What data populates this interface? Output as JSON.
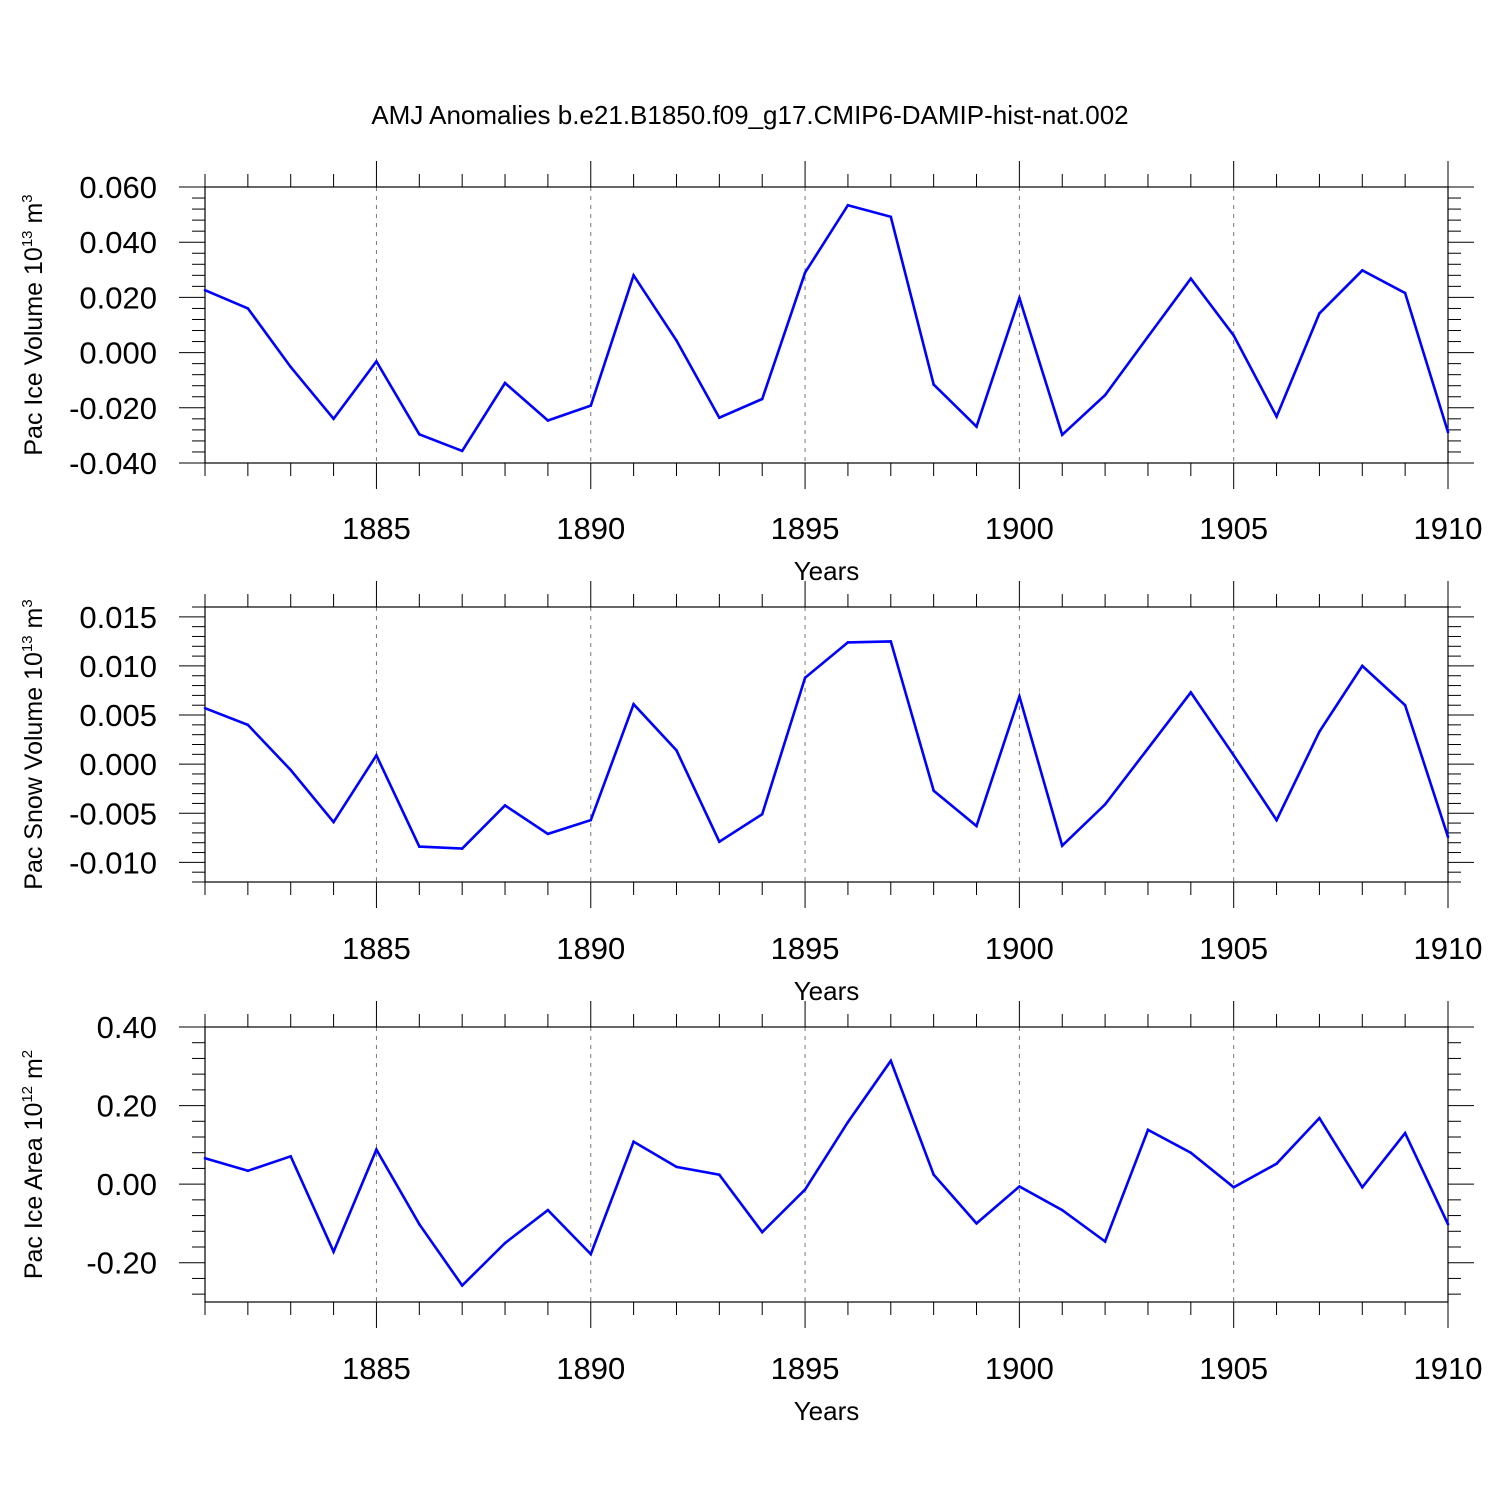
{
  "figure": {
    "title": "AMJ Anomalies b.e21.B1850.f09_g17.CMIP6-DAMIP-hist-nat.002",
    "line_color": "#0000ff"
  },
  "chart_data": [
    {
      "type": "line",
      "title": "AMJ Anomalies b.e21.B1850.f09_g17.CMIP6-DAMIP-hist-nat.002",
      "ylabel_prefix": "Pac Ice Volume 10",
      "ylabel_exp": "13",
      "ylabel_unit": " m",
      "ylabel_unit_exp": "3",
      "xlabel": "Years",
      "xlim": [
        1881,
        1910
      ],
      "ylim": [
        -0.04,
        0.06
      ],
      "yticks": [
        -0.04,
        -0.02,
        0.0,
        0.02,
        0.04,
        0.06
      ],
      "ytick_labels": [
        "-0.040",
        "-0.020",
        "0.000",
        "0.020",
        "0.040",
        "0.060"
      ],
      "xticks": [
        1885,
        1890,
        1895,
        1900,
        1905,
        1910
      ],
      "xtick_labels": [
        "1885",
        "1890",
        "1895",
        "1900",
        "1905",
        "1910"
      ],
      "grid": "vertical-dashed",
      "x": [
        1881,
        1882,
        1883,
        1884,
        1885,
        1886,
        1887,
        1888,
        1889,
        1890,
        1891,
        1892,
        1893,
        1894,
        1895,
        1896,
        1897,
        1898,
        1899,
        1900,
        1901,
        1902,
        1903,
        1904,
        1905,
        1906,
        1907,
        1908,
        1909,
        1910
      ],
      "values": [
        0.0226,
        0.016,
        -0.0052,
        -0.024,
        -0.0032,
        -0.0296,
        -0.0356,
        -0.011,
        -0.0246,
        -0.0192,
        0.028,
        0.0044,
        -0.0236,
        -0.0168,
        0.029,
        0.0534,
        0.0492,
        -0.0116,
        -0.0268,
        0.0198,
        -0.0298,
        -0.0154,
        0.0058,
        0.0268,
        0.0062,
        -0.0232,
        0.0142,
        0.0298,
        0.0216,
        -0.0288
      ]
    },
    {
      "type": "line",
      "ylabel_prefix": "Pac Snow Volume 10",
      "ylabel_exp": "13",
      "ylabel_unit": " m",
      "ylabel_unit_exp": "3",
      "xlabel": "Years",
      "xlim": [
        1881,
        1910
      ],
      "ylim": [
        -0.012,
        0.016
      ],
      "yticks": [
        -0.01,
        -0.005,
        0.0,
        0.005,
        0.01,
        0.015
      ],
      "ytick_labels": [
        "-0.010",
        "-0.005",
        "0.000",
        "0.005",
        "0.010",
        "0.015"
      ],
      "xticks": [
        1885,
        1890,
        1895,
        1900,
        1905,
        1910
      ],
      "xtick_labels": [
        "1885",
        "1890",
        "1895",
        "1900",
        "1905",
        "1910"
      ],
      "grid": "vertical-dashed",
      "x": [
        1881,
        1882,
        1883,
        1884,
        1885,
        1886,
        1887,
        1888,
        1889,
        1890,
        1891,
        1892,
        1893,
        1894,
        1895,
        1896,
        1897,
        1898,
        1899,
        1900,
        1901,
        1902,
        1903,
        1904,
        1905,
        1906,
        1907,
        1908,
        1909,
        1910
      ],
      "values": [
        0.0057,
        0.004,
        -0.0006,
        -0.0059,
        0.0009,
        -0.0084,
        -0.0086,
        -0.0042,
        -0.0071,
        -0.0057,
        0.0061,
        0.0014,
        -0.0079,
        -0.0051,
        0.0088,
        0.0124,
        0.0125,
        -0.0027,
        -0.0063,
        0.0069,
        -0.0083,
        -0.0041,
        0.0016,
        0.0073,
        0.0009,
        -0.0057,
        0.0033,
        0.01,
        0.006,
        -0.0074
      ]
    },
    {
      "type": "line",
      "ylabel_prefix": "Pac Ice Area 10",
      "ylabel_exp": "12",
      "ylabel_unit": " m",
      "ylabel_unit_exp": "2",
      "xlabel": "Years",
      "xlim": [
        1881,
        1910
      ],
      "ylim": [
        -0.3,
        0.4
      ],
      "yticks": [
        -0.2,
        0.0,
        0.2,
        0.4
      ],
      "ytick_labels": [
        "-0.20",
        "0.00",
        "0.20",
        "0.40"
      ],
      "xticks": [
        1885,
        1890,
        1895,
        1900,
        1905,
        1910
      ],
      "xtick_labels": [
        "1885",
        "1890",
        "1895",
        "1900",
        "1905",
        "1910"
      ],
      "grid": "vertical-dashed",
      "x": [
        1881,
        1882,
        1883,
        1884,
        1885,
        1886,
        1887,
        1888,
        1889,
        1890,
        1891,
        1892,
        1893,
        1894,
        1895,
        1896,
        1897,
        1898,
        1899,
        1900,
        1901,
        1902,
        1903,
        1904,
        1905,
        1906,
        1907,
        1908,
        1909,
        1910
      ],
      "values": [
        0.066,
        0.034,
        0.071,
        -0.172,
        0.088,
        -0.102,
        -0.258,
        -0.15,
        -0.066,
        -0.178,
        0.108,
        0.044,
        0.024,
        -0.122,
        -0.014,
        0.158,
        0.314,
        0.024,
        -0.1,
        -0.006,
        -0.066,
        -0.146,
        0.138,
        0.08,
        -0.008,
        0.052,
        0.168,
        -0.008,
        0.13,
        -0.102
      ]
    }
  ]
}
